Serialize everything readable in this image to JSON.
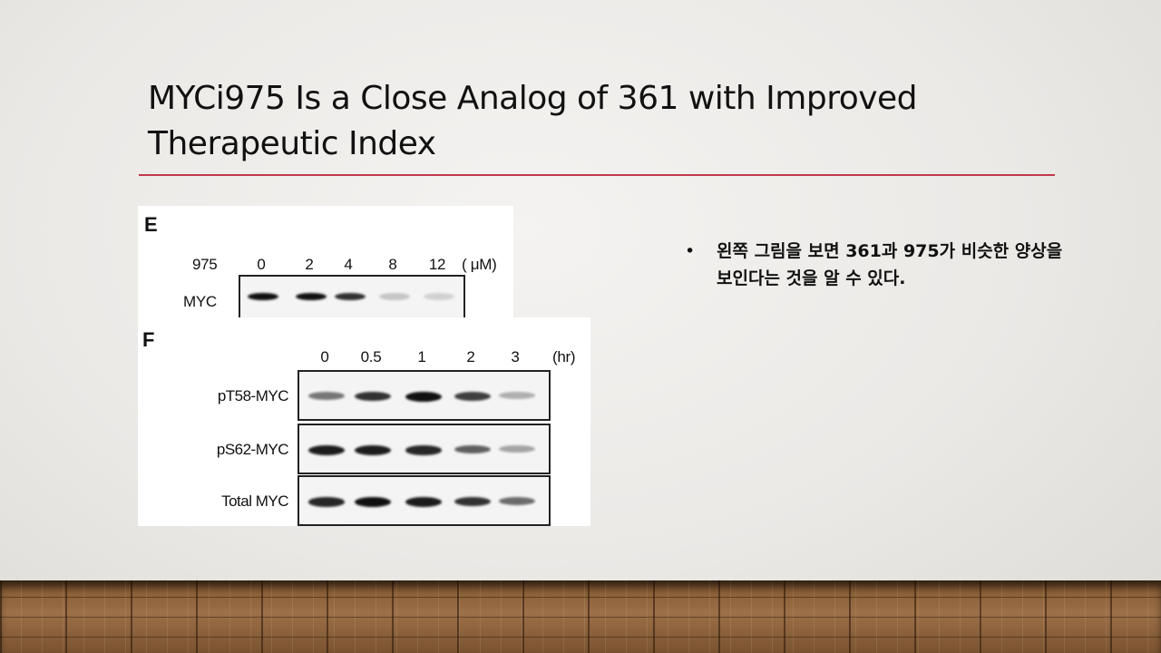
{
  "slide": {
    "title": "MYCi975 Is a Close Analog of 361 with Improved Therapeutic Index",
    "accent_color": "#c0394b"
  },
  "figure_e": {
    "panel_label": "E",
    "compound_label": "975",
    "doses": [
      "0",
      "2",
      "4",
      "8",
      "12"
    ],
    "unit": "( μM)",
    "row_label": "MYC",
    "band_intensity": [
      1.0,
      1.0,
      0.85,
      0.2,
      0.15
    ]
  },
  "figure_f": {
    "panel_label": "F",
    "times": [
      "0",
      "0.5",
      "1",
      "2",
      "3"
    ],
    "unit": "(hr)",
    "rows": [
      {
        "label": "pT58-MYC",
        "band_intensity": [
          0.55,
          0.85,
          1.0,
          0.8,
          0.3
        ]
      },
      {
        "label": "pS62-MYC",
        "band_intensity": [
          0.95,
          0.95,
          0.9,
          0.65,
          0.35
        ]
      },
      {
        "label": "Total MYC",
        "band_intensity": [
          0.9,
          1.0,
          0.95,
          0.85,
          0.6
        ]
      }
    ]
  },
  "bullets": [
    "왼쪽 그림을 보면 361과 975가 비슷한 양상을 보인다는 것을 알 수 있다."
  ],
  "bullet_symbol": "•"
}
